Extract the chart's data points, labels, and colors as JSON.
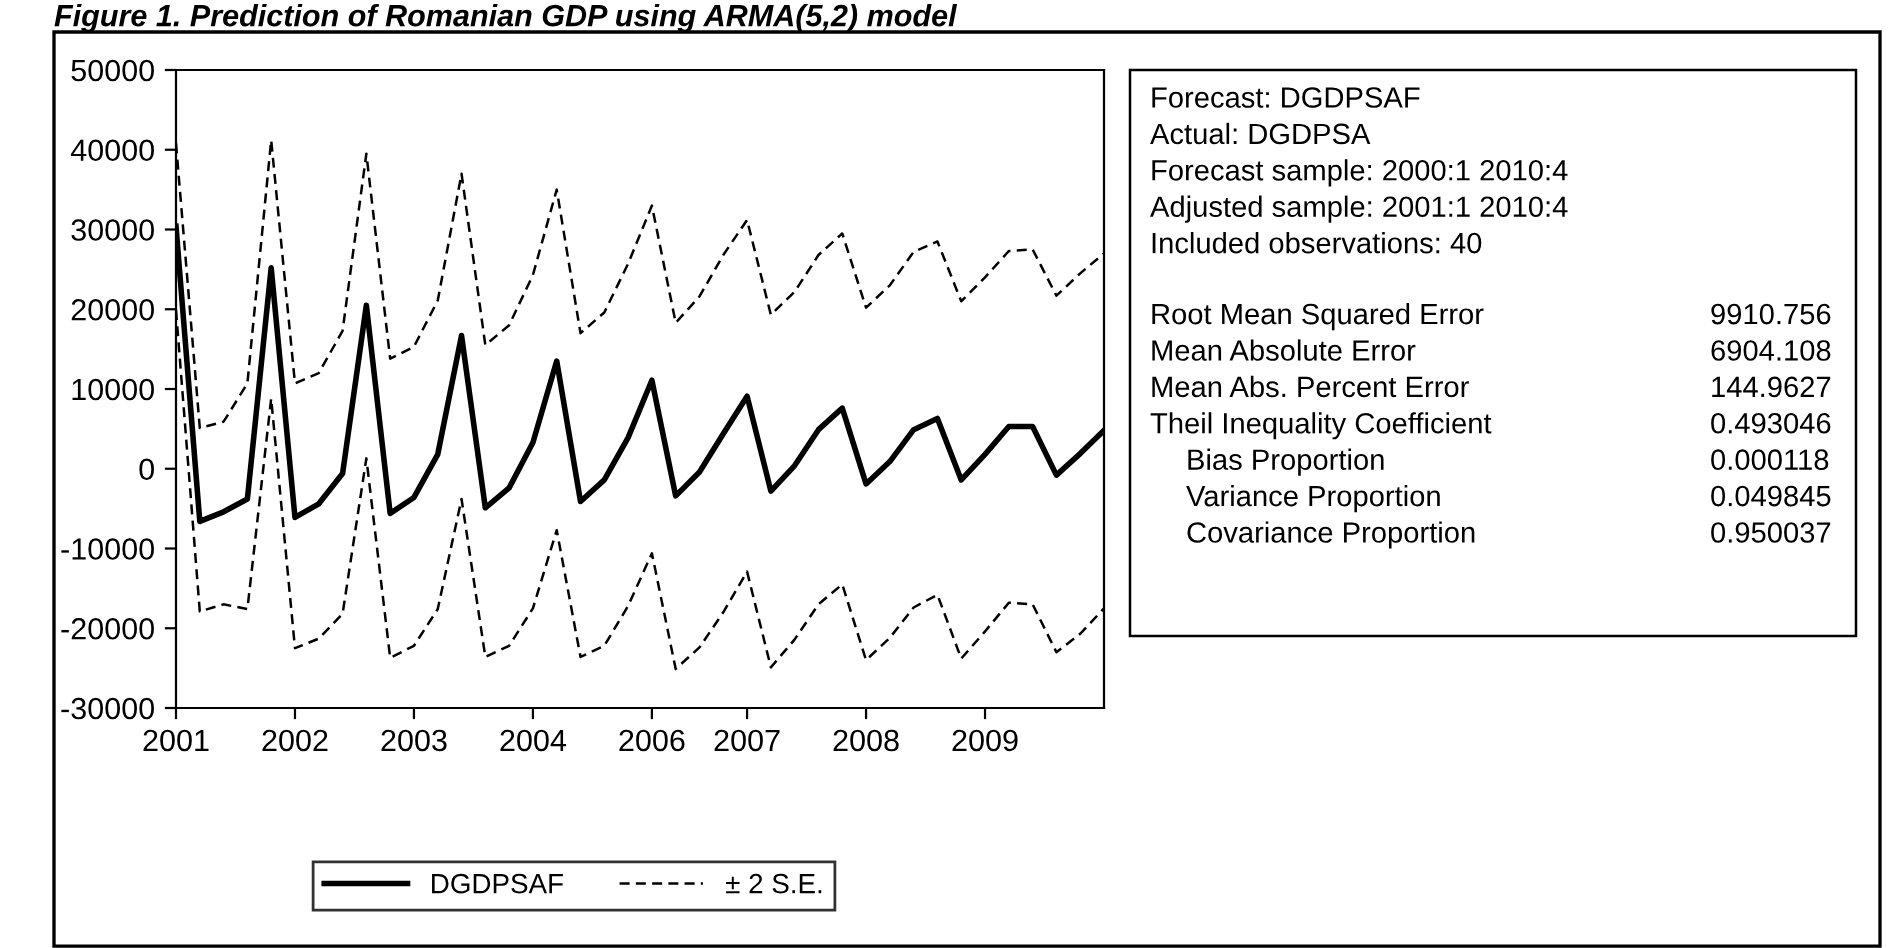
{
  "chart_data": {
    "type": "line",
    "title": "Figure 1. Prediction of Romanian GDP using ARMA(5,2) model",
    "categories": [
      "2001",
      null,
      null,
      null,
      null,
      "2002",
      null,
      null,
      null,
      null,
      "2003",
      null,
      null,
      null,
      null,
      "2004",
      null,
      null,
      null,
      null,
      "2006",
      null,
      null,
      null,
      "2007",
      null,
      null,
      null,
      null,
      "2008",
      null,
      null,
      null,
      null,
      "2009",
      null,
      null,
      null,
      null,
      null
    ],
    "series": [
      {
        "name": "DGDPSAF",
        "color": "#000000",
        "line_style": "solid",
        "values": [
          30400,
          -6600,
          -5400,
          -3800,
          25200,
          -6100,
          -4400,
          -600,
          20500,
          -5600,
          -3600,
          1800,
          16700,
          -4900,
          -2400,
          3300,
          13500,
          -4100,
          -1400,
          3900,
          11100,
          -3400,
          -400,
          4400,
          9100,
          -2800,
          400,
          4900,
          7600,
          -1900,
          900,
          4900,
          6300,
          -1400,
          1800,
          5300,
          5300,
          -800,
          1900,
          4800
        ]
      },
      {
        "name": "± 2 S.E.",
        "color": "#000000",
        "line_style": "dashed",
        "values": [
          40800,
          5100,
          5900,
          10700,
          41200,
          10700,
          12000,
          17300,
          39500,
          13800,
          15300,
          21100,
          37000,
          15500,
          18000,
          24300,
          35000,
          17000,
          19600,
          25700,
          33000,
          18300,
          21600,
          26800,
          31200,
          19300,
          22200,
          26800,
          29500,
          20200,
          23000,
          27200,
          28500,
          21000,
          24000,
          27300,
          27500,
          21700,
          24500,
          27000
        ]
      },
      {
        "color": "#000000",
        "line_style": "dashed",
        "values": [
          19900,
          -17900,
          -17000,
          -17600,
          8800,
          -22500,
          -21300,
          -18200,
          1300,
          -23700,
          -22200,
          -17600,
          -3800,
          -23600,
          -22200,
          -17500,
          -7700,
          -23600,
          -22200,
          -17200,
          -10600,
          -25100,
          -22400,
          -18000,
          -12900,
          -24900,
          -21400,
          -17000,
          -14500,
          -24000,
          -21200,
          -17400,
          -15800,
          -23800,
          -20400,
          -16800,
          -17000,
          -23000,
          -20700,
          -17500
        ]
      }
    ],
    "ylim": [
      -30000,
      50000
    ],
    "yticks": [
      -30000,
      -20000,
      -10000,
      0,
      10000,
      20000,
      30000,
      40000,
      50000
    ],
    "grid": false,
    "legend": "bottom",
    "marker": "none",
    "annotations": [
      "Forecast: DGDPSAF",
      "Actual: DGDPSA",
      "Forecast sample: 2000:1 2010:4",
      "Adjusted sample: 2001:1 2010:4",
      "Included observations: 40",
      "Root Mean Squared Error",
      "9910.756",
      "Mean Absolute Error",
      "6904.108",
      "Mean Abs. Percent Error",
      "144.9627",
      "Theil Inequality Coefficient",
      "0.493046",
      "Bias Proportion",
      "0.000118",
      "Variance Proportion",
      "0.049845",
      "Covariance Proportion",
      "0.950037"
    ]
  }
}
